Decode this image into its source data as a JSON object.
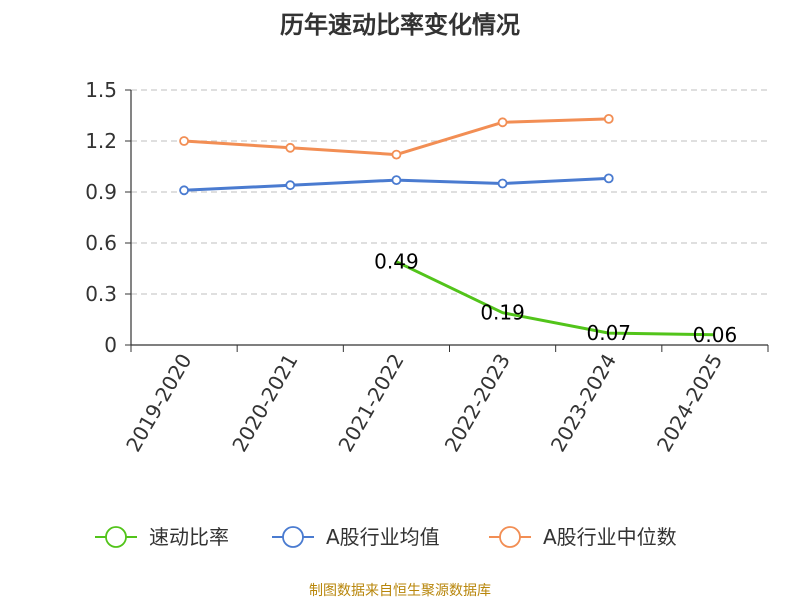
{
  "chart_data": {
    "type": "line",
    "title": "历年速动比率变化情况",
    "categories": [
      "2019-2020",
      "2020-2021",
      "2021-2022",
      "2022-2023",
      "2023-2024",
      "2024-2025"
    ],
    "ylim": [
      0,
      1.5
    ],
    "yticks": [
      0,
      0.3,
      0.6,
      0.9,
      1.2,
      1.5
    ],
    "ytick_labels": [
      "0",
      "0.3",
      "0.6",
      "0.9",
      "1.2",
      "1.5"
    ],
    "grid": true,
    "legend_position": "bottom",
    "series": [
      {
        "name": "速动比率",
        "color": "#52c41a",
        "values": [
          null,
          null,
          0.49,
          0.19,
          0.07,
          0.06
        ],
        "labels": [
          null,
          null,
          "0.49",
          "0.19",
          "0.07",
          "0.06"
        ],
        "markers": false
      },
      {
        "name": "A股行业均值",
        "color": "#4a7bd0",
        "values": [
          0.91,
          0.94,
          0.97,
          0.95,
          0.98,
          null
        ],
        "markers": true
      },
      {
        "name": "A股行业中位数",
        "color": "#f28e54",
        "values": [
          1.2,
          1.16,
          1.12,
          1.31,
          1.33,
          null
        ],
        "markers": true
      }
    ]
  },
  "source": "制图数据来自恒生聚源数据库"
}
